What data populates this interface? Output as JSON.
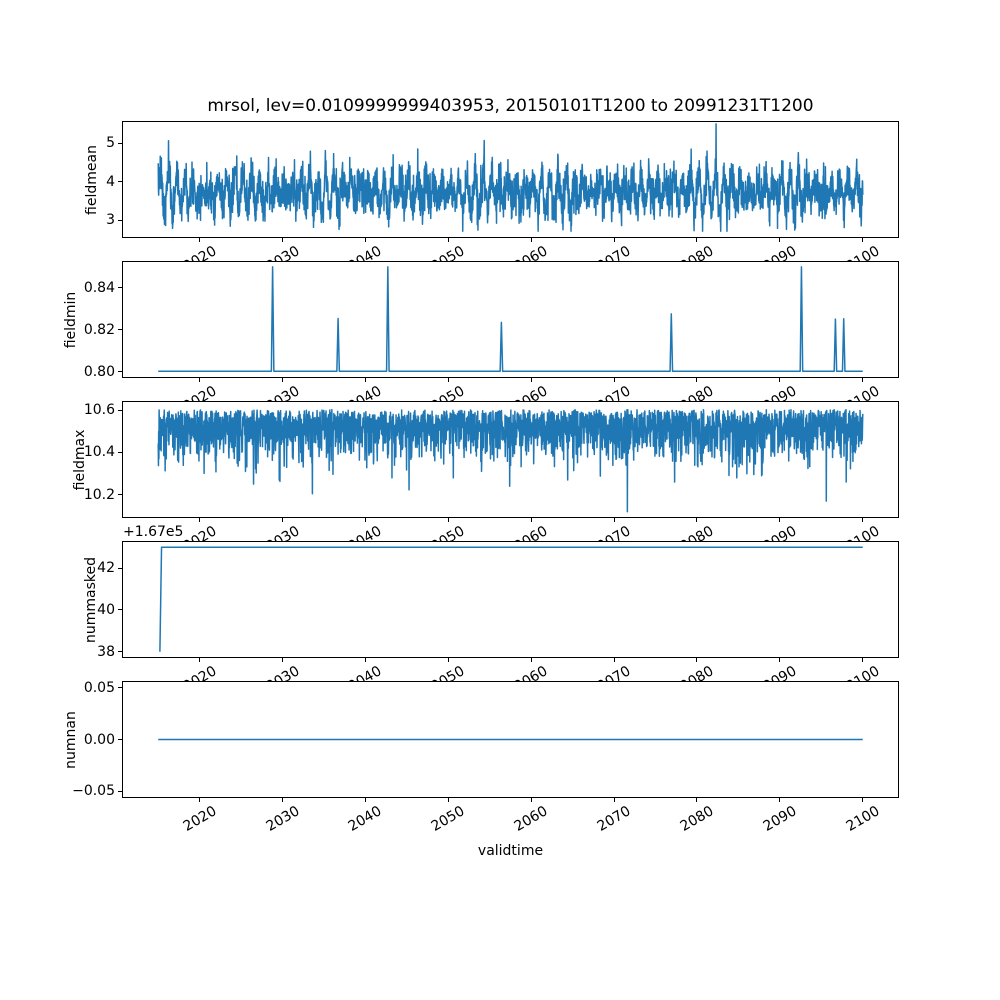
{
  "title": "mrsol, lev=0.0109999999403953, 20150101T1200 to 20991231T1200",
  "line_color": "#1f77b4",
  "axes": {
    "xlabel": "validtime",
    "xlim": [
      2010.75,
      2104.25
    ],
    "x_ticks": [
      2020,
      2030,
      2040,
      2050,
      2060,
      2070,
      2080,
      2090,
      2100
    ],
    "x_tick_labels": [
      "2020",
      "2030",
      "2040",
      "2050",
      "2060",
      "2070",
      "2080",
      "2090",
      "2100"
    ],
    "x_tick_rotation_deg": 30
  },
  "chart_data": [
    {
      "name": "fieldmean",
      "type": "line",
      "ylabel": "fieldmean",
      "ylim": [
        2.56,
        5.56
      ],
      "yticks": [
        3,
        4,
        5
      ],
      "ytick_labels": [
        "3",
        "4",
        "5"
      ],
      "x_range": [
        2015.0,
        2100.0
      ],
      "summary": {
        "mean": 3.74,
        "typical_band": [
          3.0,
          4.7
        ],
        "min": 2.71,
        "max": 5.51,
        "max_at_year": 2082.3
      },
      "generator": {
        "kind": "seasonal",
        "seed": 7,
        "n": 3150,
        "base": 3.74,
        "season_amp": 0.46,
        "season_period": 1.0,
        "mod_base": 0.72,
        "mod_amp": 0.33,
        "mod_period": 9.4,
        "mod_phase": 0.9,
        "mod2_amp": 0.12,
        "mod2_period": 23.0,
        "mod2_phase": 2.1,
        "noise_sd": 0.27,
        "clamp": [
          2.71,
          5.12
        ]
      },
      "forced_points": [
        [
          2082.3,
          5.51
        ]
      ]
    },
    {
      "name": "fieldmin",
      "type": "line",
      "ylabel": "fieldmin",
      "ylim": [
        0.7976,
        0.8521
      ],
      "yticks": [
        0.8,
        0.82,
        0.84
      ],
      "ytick_labels": [
        "0.80",
        "0.82",
        "0.84"
      ],
      "x_range": [
        2015.0,
        2100.0
      ],
      "summary": {
        "baseline": 0.8003,
        "spikes": [
          [
            2028.8,
            0.8498
          ],
          [
            2036.7,
            0.8253
          ],
          [
            2042.7,
            0.8498
          ],
          [
            2056.4,
            0.8235
          ],
          [
            2076.9,
            0.8275
          ],
          [
            2092.6,
            0.8498
          ],
          [
            2096.7,
            0.825
          ],
          [
            2097.7,
            0.8252
          ]
        ]
      },
      "points": [
        [
          2015.0,
          0.8003
        ],
        [
          2028.65,
          0.8003
        ],
        [
          2028.8,
          0.8498
        ],
        [
          2028.95,
          0.8003
        ],
        [
          2036.55,
          0.8003
        ],
        [
          2036.7,
          0.8253
        ],
        [
          2036.85,
          0.8003
        ],
        [
          2042.55,
          0.8003
        ],
        [
          2042.7,
          0.8498
        ],
        [
          2042.85,
          0.8003
        ],
        [
          2056.25,
          0.8003
        ],
        [
          2056.4,
          0.8235
        ],
        [
          2056.55,
          0.8003
        ],
        [
          2076.75,
          0.8003
        ],
        [
          2076.9,
          0.8275
        ],
        [
          2077.05,
          0.8003
        ],
        [
          2092.45,
          0.8003
        ],
        [
          2092.6,
          0.8498
        ],
        [
          2092.75,
          0.8003
        ],
        [
          2096.55,
          0.8003
        ],
        [
          2096.7,
          0.825
        ],
        [
          2096.85,
          0.8003
        ],
        [
          2097.55,
          0.8003
        ],
        [
          2097.7,
          0.8252
        ],
        [
          2097.85,
          0.8003
        ],
        [
          2100.0,
          0.8003
        ]
      ]
    },
    {
      "name": "fieldmax",
      "type": "line",
      "ylabel": "fieldmax",
      "ylim": [
        10.095,
        10.638
      ],
      "yticks": [
        10.2,
        10.4,
        10.6
      ],
      "ytick_labels": [
        "10.2",
        "10.4",
        "10.6"
      ],
      "x_range": [
        2015.0,
        2100.0
      ],
      "summary": {
        "top_level": 10.602,
        "typical_dips_to": [
          10.35,
          10.5
        ],
        "min": 10.12,
        "min_at_year": 2071.6
      },
      "generator": {
        "kind": "top_dips",
        "seed": 12,
        "n": 3150,
        "top": 10.602,
        "lin": 0.08,
        "pow_amp": 0.14,
        "pow": 4,
        "clamp": [
          10.1,
          10.602
        ]
      },
      "forced_points": [
        [
          2026.5,
          10.25
        ],
        [
          2029.6,
          10.27
        ],
        [
          2033.6,
          10.205
        ],
        [
          2043.2,
          10.28
        ],
        [
          2050.6,
          10.28
        ],
        [
          2057.4,
          10.24
        ],
        [
          2064.4,
          10.27
        ],
        [
          2071.6,
          10.12
        ],
        [
          2077.3,
          10.26
        ],
        [
          2084.8,
          10.28
        ],
        [
          2087.8,
          10.29
        ],
        [
          2095.6,
          10.17
        ],
        [
          2098.0,
          10.26
        ]
      ]
    },
    {
      "name": "nummasked",
      "type": "line",
      "ylabel": "nummasked",
      "offset_text": "+1.67e5",
      "ylim": [
        37.75,
        43.25
      ],
      "yticks": [
        38,
        40,
        42
      ],
      "ytick_labels": [
        "38",
        "40",
        "42"
      ],
      "x_range": [
        2015.0,
        2100.0
      ],
      "summary": {
        "start_value": 38,
        "plateau_value": 43,
        "step_at_year": 2015.3
      },
      "points": [
        [
          2015.2,
          38
        ],
        [
          2015.4,
          43
        ],
        [
          2100.0,
          43
        ]
      ]
    },
    {
      "name": "numnan",
      "type": "line",
      "ylabel": "numnan",
      "ylim": [
        -0.0555,
        0.0555
      ],
      "yticks": [
        -0.05,
        0.0,
        0.05
      ],
      "ytick_labels": [
        "−0.05",
        "0.00",
        "0.05"
      ],
      "x_range": [
        2015.0,
        2100.0
      ],
      "summary": {
        "constant_value": 0.0
      },
      "points": [
        [
          2015.0,
          0.0
        ],
        [
          2100.0,
          0.0
        ]
      ]
    }
  ]
}
